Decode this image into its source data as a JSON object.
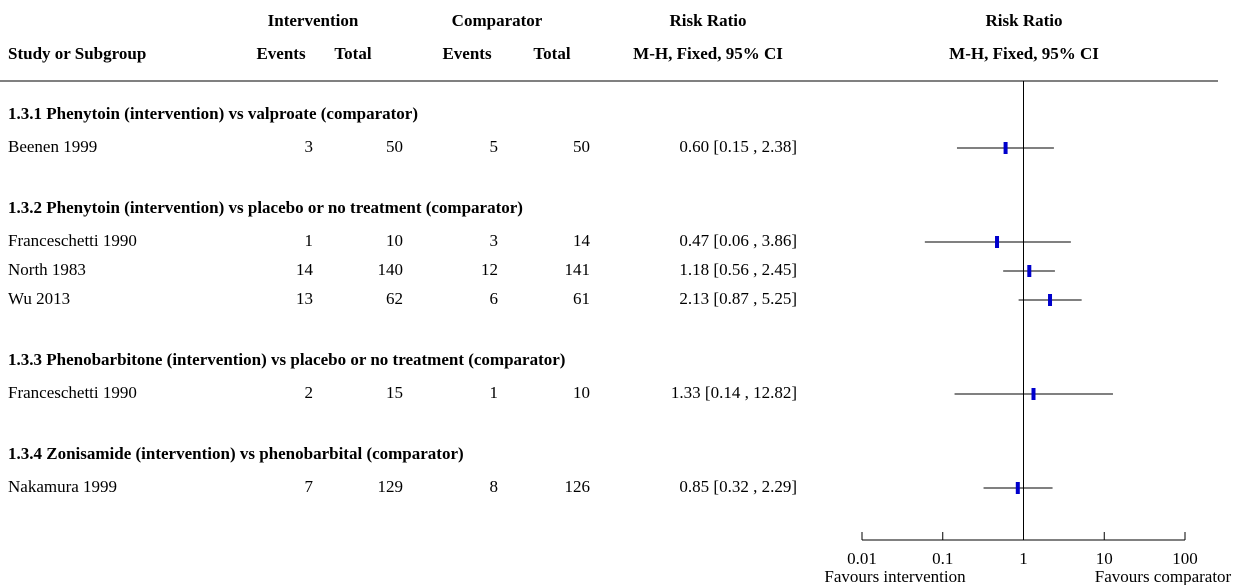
{
  "chart_data": {
    "type": "forest",
    "headers": {
      "study": "Study or Subgroup",
      "intervention": "Intervention",
      "comparator": "Comparator",
      "events": "Events",
      "total": "Total",
      "effect": "Risk Ratio",
      "method": "M-H, Fixed, 95% CI"
    },
    "groups": [
      {
        "title": "1.3.1 Phenytoin (intervention) vs valproate (comparator)",
        "studies": [
          {
            "name": "Beenen 1999",
            "int_events": 3,
            "int_total": 50,
            "comp_events": 5,
            "comp_total": 50,
            "rr": 0.6,
            "lower": 0.15,
            "upper": 2.38,
            "ci_label": "0.60 [0.15 , 2.38]"
          }
        ]
      },
      {
        "title": "1.3.2 Phenytoin (intervention) vs placebo or no treatment (comparator)",
        "studies": [
          {
            "name": "Franceschetti 1990",
            "int_events": 1,
            "int_total": 10,
            "comp_events": 3,
            "comp_total": 14,
            "rr": 0.47,
            "lower": 0.06,
            "upper": 3.86,
            "ci_label": "0.47 [0.06 , 3.86]"
          },
          {
            "name": "North 1983",
            "int_events": 14,
            "int_total": 140,
            "comp_events": 12,
            "comp_total": 141,
            "rr": 1.18,
            "lower": 0.56,
            "upper": 2.45,
            "ci_label": "1.18 [0.56 , 2.45]"
          },
          {
            "name": "Wu 2013",
            "int_events": 13,
            "int_total": 62,
            "comp_events": 6,
            "comp_total": 61,
            "rr": 2.13,
            "lower": 0.87,
            "upper": 5.25,
            "ci_label": "2.13 [0.87 , 5.25]"
          }
        ]
      },
      {
        "title": "1.3.3 Phenobarbitone (intervention) vs placebo or no treatment (comparator)",
        "studies": [
          {
            "name": "Franceschetti 1990",
            "int_events": 2,
            "int_total": 15,
            "comp_events": 1,
            "comp_total": 10,
            "rr": 1.33,
            "lower": 0.14,
            "upper": 12.82,
            "ci_label": "1.33 [0.14 , 12.82]"
          }
        ]
      },
      {
        "title": "1.3.4 Zonisamide (intervention) vs phenobarbital (comparator)",
        "studies": [
          {
            "name": "Nakamura 1999",
            "int_events": 7,
            "int_total": 129,
            "comp_events": 8,
            "comp_total": 126,
            "rr": 0.85,
            "lower": 0.32,
            "upper": 2.29,
            "ci_label": "0.85 [0.32 , 2.29]"
          }
        ]
      }
    ],
    "xlim": [
      0.01,
      100
    ],
    "xticks": [
      0.01,
      0.1,
      1,
      10,
      100
    ],
    "log_scale": true,
    "color": "#0000cc",
    "favours_left": "Favours intervention",
    "favours_right": "Favours comparator"
  }
}
